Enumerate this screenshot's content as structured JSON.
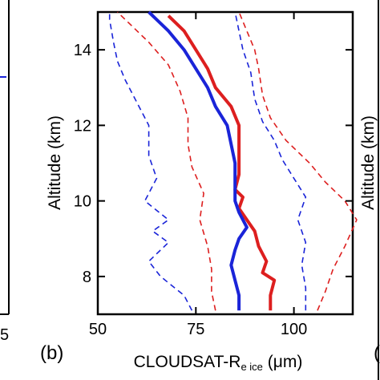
{
  "chart_data": {
    "type": "line",
    "panel_label": "(b)",
    "xlabel": "CLOUDSAT-R",
    "xlabel_subscript": "e ice",
    "xlabel_unit": "(μm)",
    "ylabel": "Altitude (km)",
    "xlim": [
      50,
      115
    ],
    "ylim": [
      7,
      15
    ],
    "xticks": [
      50,
      75,
      100
    ],
    "yticks": [
      8,
      10,
      12,
      14
    ],
    "grid": false,
    "series": [
      {
        "color": "#dd1f1f",
        "style": "solid",
        "points": [
          [
            94,
            7.1
          ],
          [
            94,
            7.5
          ],
          [
            95,
            7.9
          ],
          [
            92,
            8.1
          ],
          [
            93,
            8.4
          ],
          [
            91,
            8.8
          ],
          [
            90,
            9.2
          ],
          [
            88,
            9.5
          ],
          [
            86,
            9.8
          ],
          [
            87,
            10.1
          ],
          [
            85,
            10.3
          ],
          [
            86,
            10.7
          ],
          [
            86,
            11.1
          ],
          [
            86,
            11.5
          ],
          [
            86,
            12.0
          ],
          [
            84,
            12.5
          ],
          [
            80,
            13.0
          ],
          [
            78,
            13.5
          ],
          [
            75,
            14.0
          ],
          [
            72,
            14.5
          ],
          [
            68,
            14.9
          ]
        ]
      },
      {
        "color": "#1a24d8",
        "style": "solid",
        "points": [
          [
            86,
            7.1
          ],
          [
            86,
            7.5
          ],
          [
            85,
            7.9
          ],
          [
            84,
            8.3
          ],
          [
            85,
            8.7
          ],
          [
            86,
            9.0
          ],
          [
            88,
            9.3
          ],
          [
            86,
            9.7
          ],
          [
            85,
            10.0
          ],
          [
            85,
            10.5
          ],
          [
            85,
            11.0
          ],
          [
            84,
            11.5
          ],
          [
            83,
            12.0
          ],
          [
            80,
            12.5
          ],
          [
            78,
            13.0
          ],
          [
            75,
            13.5
          ],
          [
            72,
            14.0
          ],
          [
            68,
            14.5
          ],
          [
            65,
            14.8
          ],
          [
            63,
            15.0
          ]
        ]
      },
      {
        "color": "#dd1f1f",
        "style": "dashed",
        "points": [
          [
            80,
            7.1
          ],
          [
            79,
            7.6
          ],
          [
            79,
            8.2
          ],
          [
            78,
            8.8
          ],
          [
            76,
            9.5
          ],
          [
            77,
            10.2
          ],
          [
            74,
            10.9
          ],
          [
            73,
            11.5
          ],
          [
            73,
            12.2
          ],
          [
            71,
            12.9
          ],
          [
            68,
            13.6
          ],
          [
            63,
            14.2
          ],
          [
            58,
            14.7
          ],
          [
            55,
            15.0
          ]
        ]
      },
      {
        "color": "#dd1f1f",
        "style": "dashed",
        "points": [
          [
            106,
            7.1
          ],
          [
            108,
            7.6
          ],
          [
            110,
            8.2
          ],
          [
            113,
            8.8
          ],
          [
            116,
            9.5
          ],
          [
            113,
            10.0
          ],
          [
            108,
            10.5
          ],
          [
            104,
            11.0
          ],
          [
            98,
            11.6
          ],
          [
            94,
            12.2
          ],
          [
            92,
            12.8
          ],
          [
            91,
            13.5
          ],
          [
            90,
            14.0
          ],
          [
            88,
            14.5
          ],
          [
            86,
            15.0
          ]
        ]
      },
      {
        "color": "#1a24d8",
        "style": "dashed",
        "points": [
          [
            74,
            7.1
          ],
          [
            72,
            7.5
          ],
          [
            66,
            8.0
          ],
          [
            63,
            8.4
          ],
          [
            68,
            8.9
          ],
          [
            64,
            9.2
          ],
          [
            68,
            9.5
          ],
          [
            62,
            10.0
          ],
          [
            65,
            10.6
          ],
          [
            63,
            11.2
          ],
          [
            63,
            12.0
          ],
          [
            60,
            12.6
          ],
          [
            57,
            13.2
          ],
          [
            55,
            13.7
          ],
          [
            54,
            14.2
          ],
          [
            53,
            14.8
          ],
          [
            53,
            15.0
          ]
        ]
      },
      {
        "color": "#1a24d8",
        "style": "dashed",
        "points": [
          [
            103,
            7.1
          ],
          [
            103,
            7.7
          ],
          [
            102,
            8.3
          ],
          [
            103,
            8.9
          ],
          [
            101,
            9.5
          ],
          [
            103,
            10.1
          ],
          [
            100,
            10.6
          ],
          [
            97,
            11.1
          ],
          [
            95,
            11.6
          ],
          [
            92,
            12.1
          ],
          [
            90,
            12.7
          ],
          [
            89,
            13.4
          ],
          [
            87,
            14.0
          ],
          [
            86,
            14.5
          ],
          [
            85,
            15.0
          ]
        ]
      }
    ]
  },
  "neighbors": {
    "left_tick": "5",
    "right_label_fragment": "Altitude (km)",
    "right_tag_fragment": "("
  }
}
